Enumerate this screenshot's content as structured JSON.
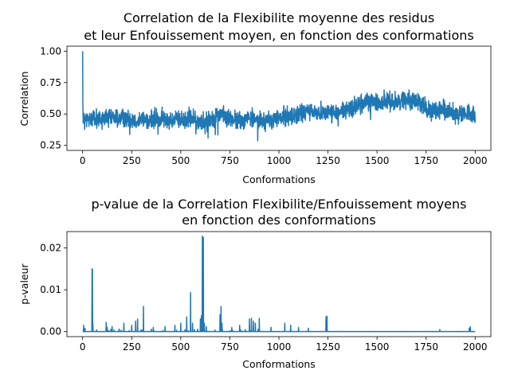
{
  "chart_data": [
    {
      "type": "line",
      "title": "Correlation de la Flexibilite moyenne des residus\net leur Enfouissement moyen, en fonction des conformations",
      "title_lines": [
        "Correlation de la Flexibilite moyenne des residus",
        "et leur Enfouissement moyen, en fonction des conformations"
      ],
      "xlabel": "Conformations",
      "ylabel": "Correlation",
      "xlim": [
        -80,
        2080
      ],
      "ylim": [
        0.21,
        1.04
      ],
      "xticks": [
        0,
        250,
        500,
        750,
        1000,
        1250,
        1500,
        1750,
        2000
      ],
      "xtick_labels": [
        "0",
        "250",
        "500",
        "750",
        "1000",
        "1250",
        "1500",
        "1750",
        "2000"
      ],
      "yticks": [
        0.25,
        0.5,
        0.75,
        1.0
      ],
      "ytick_labels": [
        "0.25",
        "0.50",
        "0.75",
        "1.00"
      ],
      "grid": false,
      "color": "#1f77b4",
      "n_points": 2001,
      "series_description": "noisy correlation trace per conformation",
      "trend": {
        "x": [
          0,
          1,
          2,
          5,
          10,
          50,
          100,
          200,
          300,
          400,
          500,
          550,
          600,
          650,
          700,
          750,
          800,
          850,
          900,
          950,
          1000,
          1050,
          1100,
          1150,
          1200,
          1250,
          1300,
          1350,
          1400,
          1450,
          1500,
          1550,
          1600,
          1650,
          1700,
          1750,
          1800,
          1850,
          1900,
          1950,
          2000
        ],
        "y": [
          1.0,
          0.6,
          0.5,
          0.48,
          0.45,
          0.47,
          0.46,
          0.47,
          0.45,
          0.46,
          0.45,
          0.47,
          0.43,
          0.46,
          0.5,
          0.46,
          0.44,
          0.47,
          0.45,
          0.44,
          0.47,
          0.48,
          0.5,
          0.52,
          0.51,
          0.52,
          0.5,
          0.54,
          0.57,
          0.6,
          0.59,
          0.6,
          0.6,
          0.62,
          0.6,
          0.55,
          0.53,
          0.52,
          0.5,
          0.5,
          0.47
        ]
      },
      "amplitude": 0.06
    },
    {
      "type": "line",
      "title": "p-value de la Correlation Flexibilite/Enfouissement moyens\nen fonction des conformations",
      "title_lines": [
        "p-value de la Correlation Flexibilite/Enfouissement moyens",
        "en fonction des conformations"
      ],
      "xlabel": "Conformations",
      "ylabel": "p-valeur",
      "xlim": [
        -80,
        2080
      ],
      "ylim": [
        -0.0012,
        0.0239
      ],
      "xticks": [
        0,
        250,
        500,
        750,
        1000,
        1250,
        1500,
        1750,
        2000
      ],
      "xtick_labels": [
        "0",
        "250",
        "500",
        "750",
        "1000",
        "1250",
        "1500",
        "1750",
        "2000"
      ],
      "yticks": [
        0.0,
        0.01,
        0.02
      ],
      "ytick_labels": [
        "0.00",
        "0.01",
        "0.02"
      ],
      "grid": false,
      "color": "#1f77b4",
      "n_points": 2001,
      "spikes": {
        "x": [
          5,
          12,
          48,
          50,
          52,
          120,
          125,
          150,
          210,
          250,
          270,
          280,
          310,
          360,
          420,
          470,
          500,
          530,
          550,
          560,
          600,
          605,
          610,
          615,
          620,
          630,
          700,
          705,
          710,
          760,
          800,
          850,
          860,
          870,
          880,
          900,
          960,
          1030,
          1060,
          1100,
          1150,
          1240,
          1245,
          1820,
          1970,
          1975
        ],
        "y": [
          0.0015,
          0.0008,
          0.015,
          0.0148,
          0.002,
          0.0022,
          0.001,
          0.0012,
          0.002,
          0.0015,
          0.0025,
          0.003,
          0.006,
          0.001,
          0.0012,
          0.0015,
          0.002,
          0.0035,
          0.0093,
          0.002,
          0.003,
          0.0038,
          0.0228,
          0.0225,
          0.002,
          0.0012,
          0.004,
          0.006,
          0.002,
          0.001,
          0.0015,
          0.003,
          0.0032,
          0.0025,
          0.002,
          0.0032,
          0.001,
          0.002,
          0.0015,
          0.001,
          0.0008,
          0.0035,
          0.0037,
          0.0005,
          0.0008,
          0.0012
        ]
      }
    }
  ]
}
